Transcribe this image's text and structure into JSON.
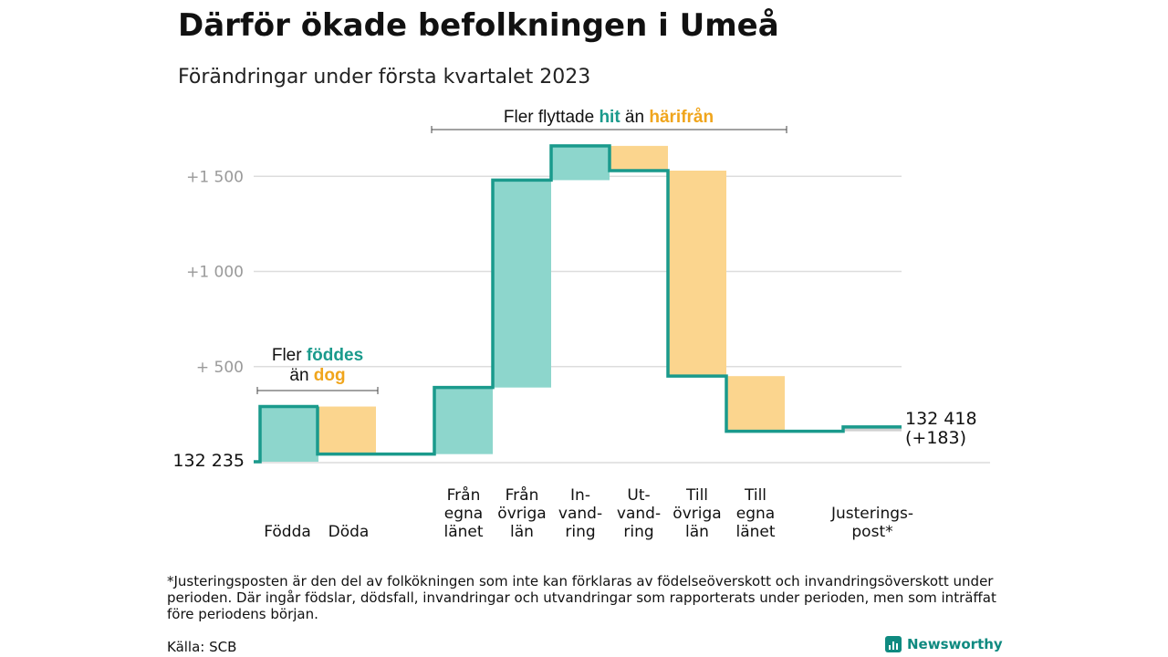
{
  "title": "Därför ökade befolkningen i Umeå",
  "subtitle": "Förändringar under första kvartalet 2023",
  "chart_data": {
    "type": "waterfall",
    "start_label": "132 235",
    "end_label_line1": "132 418",
    "end_label_line2": "(+183)",
    "ylim": [
      -20,
      1700
    ],
    "yticks": [
      {
        "value": 500,
        "label": "+ 500"
      },
      {
        "value": 1000,
        "label": "+1 000"
      },
      {
        "value": 1500,
        "label": "+1 500"
      }
    ],
    "steps": [
      {
        "label": [
          "Födda"
        ],
        "from": 0,
        "to": 290,
        "kind": "plus"
      },
      {
        "label": [
          "Döda"
        ],
        "from": 290,
        "to": 40,
        "kind": "minus"
      },
      {
        "label": [
          "Från",
          "egna",
          "länet"
        ],
        "from": 40,
        "to": 390,
        "kind": "plus"
      },
      {
        "label": [
          "Från",
          "övriga",
          "län"
        ],
        "from": 390,
        "to": 1480,
        "kind": "plus"
      },
      {
        "label": [
          "In-",
          "vand-",
          "ring"
        ],
        "from": 1480,
        "to": 1660,
        "kind": "plus"
      },
      {
        "label": [
          "Ut-",
          "vand-",
          "ring"
        ],
        "from": 1660,
        "to": 1530,
        "kind": "minus"
      },
      {
        "label": [
          "Till",
          "övriga",
          "län"
        ],
        "from": 1530,
        "to": 450,
        "kind": "minus"
      },
      {
        "label": [
          "Till",
          "egna",
          "länet"
        ],
        "from": 450,
        "to": 160,
        "kind": "minus"
      },
      {
        "label": [
          "Justerings-",
          "post*"
        ],
        "from": 160,
        "to": 183,
        "kind": "adjust"
      }
    ],
    "colors": {
      "plus_fill": "#8dd6cc",
      "minus_fill": "#fbd58e",
      "adjust_fill": "#d0d0d0",
      "line": "#1a9a8c",
      "grid": "#dddddd",
      "tick_text": "#9a9a9a"
    },
    "annotations": {
      "births": {
        "line1": "Fler ",
        "line1_hl": "föddes",
        "line2": "än ",
        "line2_hl": "dog"
      },
      "moves": {
        "pre": "Fler flyttade ",
        "hl1": "hit",
        "mid": " än ",
        "hl2": "härifrån"
      }
    }
  },
  "footnote": "*Justeringsposten är den del av folkökningen som inte kan förklaras av födelseöverskott och invandringsöverskott under perioden. Där ingår födslar, dödsfall, invandringar och utvandringar som rapporterats under perioden, men som inträffat före periodens början.",
  "source": "Källa: SCB",
  "brand": "Newsworthy"
}
